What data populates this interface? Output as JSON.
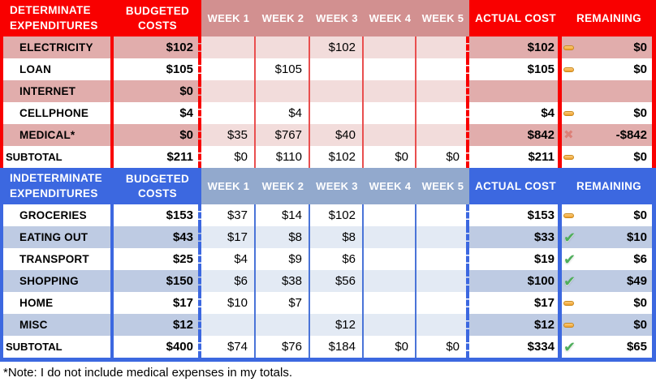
{
  "note": "*Note: I do not include medical expenses in my totals.",
  "colors": {
    "red_header": "#f90000",
    "red_week_header": "#d29090",
    "red_stripe": "#e1adac",
    "red_stripe_light": "#f2dcdb",
    "blue_header": "#3c68e0",
    "blue_week_header": "#92a9cd",
    "blue_stripe": "#becbe3",
    "blue_stripe_light": "#e3eaf4",
    "icon_dash": "#f0a028",
    "icon_check": "#4eae5b",
    "icon_x": "#dc8078"
  },
  "red": {
    "title": "DETERMINATE\nEXPENDITURES",
    "budgeted_header": "BUDGETED COSTS",
    "weeks": [
      "WEEK 1",
      "WEEK 2",
      "WEEK 3",
      "WEEK 4",
      "WEEK 5"
    ],
    "actual_header": "ACTUAL COST",
    "remaining_header": "REMAINING",
    "rows": [
      {
        "label": "ELECTRICITY",
        "budgeted": "$102",
        "weeks": [
          "",
          "",
          "$102",
          "",
          ""
        ],
        "actual": "$102",
        "icon": "dash",
        "remaining": "$0"
      },
      {
        "label": "LOAN",
        "budgeted": "$105",
        "weeks": [
          "",
          "$105",
          "",
          "",
          ""
        ],
        "actual": "$105",
        "icon": "dash",
        "remaining": "$0"
      },
      {
        "label": "INTERNET",
        "budgeted": "$0",
        "weeks": [
          "",
          "",
          "",
          "",
          ""
        ],
        "actual": "",
        "icon": "",
        "remaining": ""
      },
      {
        "label": "CELLPHONE",
        "budgeted": "$4",
        "weeks": [
          "",
          "$4",
          "",
          "",
          ""
        ],
        "actual": "$4",
        "icon": "dash",
        "remaining": "$0"
      },
      {
        "label": "MEDICAL*",
        "budgeted": "$0",
        "weeks": [
          "$35",
          "$767",
          "$40",
          "",
          ""
        ],
        "actual": "$842",
        "icon": "x",
        "remaining": "-$842"
      },
      {
        "label": "SUBTOTAL",
        "budgeted": "$211",
        "weeks": [
          "$0",
          "$110",
          "$102",
          "$0",
          "$0"
        ],
        "actual": "$211",
        "icon": "dash",
        "remaining": "$0"
      }
    ]
  },
  "blue": {
    "title": "INDETERMINATE\nEXPENDITURES",
    "budgeted_header": "BUDGETED COSTS",
    "weeks": [
      "WEEK 1",
      "WEEK 2",
      "WEEK 3",
      "WEEK 4",
      "WEEK 5"
    ],
    "actual_header": "ACTUAL COST",
    "remaining_header": "REMAINING",
    "rows": [
      {
        "label": "GROCERIES",
        "budgeted": "$153",
        "weeks": [
          "$37",
          "$14",
          "$102",
          "",
          ""
        ],
        "actual": "$153",
        "icon": "dash",
        "remaining": "$0"
      },
      {
        "label": "EATING OUT",
        "budgeted": "$43",
        "weeks": [
          "$17",
          "$8",
          "$8",
          "",
          ""
        ],
        "actual": "$33",
        "icon": "check",
        "remaining": "$10"
      },
      {
        "label": "TRANSPORT",
        "budgeted": "$25",
        "weeks": [
          "$4",
          "$9",
          "$6",
          "",
          ""
        ],
        "actual": "$19",
        "icon": "check",
        "remaining": "$6"
      },
      {
        "label": "SHOPPING",
        "budgeted": "$150",
        "weeks": [
          "$6",
          "$38",
          "$56",
          "",
          ""
        ],
        "actual": "$100",
        "icon": "check",
        "remaining": "$49"
      },
      {
        "label": "HOME",
        "budgeted": "$17",
        "weeks": [
          "$10",
          "$7",
          "",
          "",
          ""
        ],
        "actual": "$17",
        "icon": "dash",
        "remaining": "$0"
      },
      {
        "label": "MISC",
        "budgeted": "$12",
        "weeks": [
          "",
          "",
          "$12",
          "",
          ""
        ],
        "actual": "$12",
        "icon": "dash",
        "remaining": "$0"
      },
      {
        "label": "SUBTOTAL",
        "budgeted": "$400",
        "weeks": [
          "$74",
          "$76",
          "$184",
          "$0",
          "$0"
        ],
        "actual": "$334",
        "icon": "check",
        "remaining": "$65"
      }
    ]
  }
}
